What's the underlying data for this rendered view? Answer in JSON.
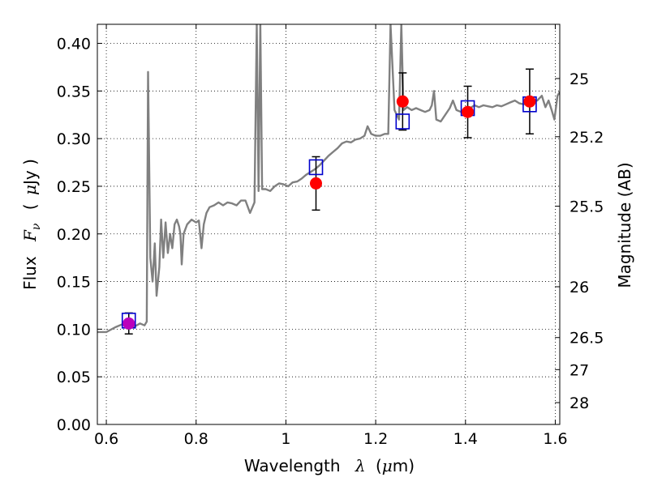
{
  "chart_data": {
    "type": "scatter",
    "title": "",
    "xlabel": {
      "prefix": "Wavelength",
      "symbol": "λ",
      "unit_open": "(",
      "unit_mu": "μ",
      "unit": "m)"
    },
    "ylabel": {
      "prefix": "Flux",
      "symbol": "F",
      "subscript": "ν",
      "unit_open": "(",
      "unit_mu": "μ",
      "unit": "Jy )"
    },
    "ylabel_right": "Magnitude (AB)",
    "xlim": [
      0.58,
      1.61
    ],
    "ylim": [
      0.0,
      0.42
    ],
    "grid": true,
    "x_ticks": [
      {
        "value": 0.6,
        "label": "0.6"
      },
      {
        "value": 0.8,
        "label": "0.8"
      },
      {
        "value": 1.0,
        "label": "1"
      },
      {
        "value": 1.2,
        "label": "1.2"
      },
      {
        "value": 1.4,
        "label": "1.4"
      },
      {
        "value": 1.6,
        "label": "1.6"
      }
    ],
    "y_ticks": [
      {
        "value": 0.0,
        "label": "0.00"
      },
      {
        "value": 0.05,
        "label": "0.05"
      },
      {
        "value": 0.1,
        "label": "0.10"
      },
      {
        "value": 0.15,
        "label": "0.15"
      },
      {
        "value": 0.2,
        "label": "0.20"
      },
      {
        "value": 0.25,
        "label": "0.25"
      },
      {
        "value": 0.3,
        "label": "0.30"
      },
      {
        "value": 0.35,
        "label": "0.35"
      },
      {
        "value": 0.4,
        "label": "0.40"
      }
    ],
    "magnitude_ticks": [
      {
        "mag": 25,
        "label": "25"
      },
      {
        "mag": 25.2,
        "label": "25.2"
      },
      {
        "mag": 25.5,
        "label": "25.5"
      },
      {
        "mag": 26,
        "label": "26"
      },
      {
        "mag": 26.5,
        "label": "26.5"
      },
      {
        "mag": 27,
        "label": "27"
      },
      {
        "mag": 28,
        "label": "28"
      }
    ],
    "model_spectrum": {
      "color": "#808080",
      "points": [
        [
          0.58,
          0.097
        ],
        [
          0.6,
          0.097
        ],
        [
          0.62,
          0.102
        ],
        [
          0.64,
          0.106
        ],
        [
          0.66,
          0.102
        ],
        [
          0.675,
          0.106
        ],
        [
          0.685,
          0.104
        ],
        [
          0.69,
          0.108
        ],
        [
          0.693,
          0.37
        ],
        [
          0.698,
          0.175
        ],
        [
          0.703,
          0.15
        ],
        [
          0.708,
          0.19
        ],
        [
          0.712,
          0.135
        ],
        [
          0.718,
          0.165
        ],
        [
          0.722,
          0.215
        ],
        [
          0.727,
          0.175
        ],
        [
          0.732,
          0.212
        ],
        [
          0.737,
          0.18
        ],
        [
          0.742,
          0.2
        ],
        [
          0.747,
          0.185
        ],
        [
          0.752,
          0.21
        ],
        [
          0.757,
          0.215
        ],
        [
          0.762,
          0.208
        ],
        [
          0.765,
          0.2
        ],
        [
          0.768,
          0.168
        ],
        [
          0.772,
          0.2
        ],
        [
          0.78,
          0.21
        ],
        [
          0.79,
          0.215
        ],
        [
          0.8,
          0.212
        ],
        [
          0.806,
          0.214
        ],
        [
          0.812,
          0.185
        ],
        [
          0.817,
          0.21
        ],
        [
          0.823,
          0.222
        ],
        [
          0.83,
          0.228
        ],
        [
          0.84,
          0.23
        ],
        [
          0.85,
          0.233
        ],
        [
          0.86,
          0.23
        ],
        [
          0.87,
          0.233
        ],
        [
          0.88,
          0.232
        ],
        [
          0.89,
          0.23
        ],
        [
          0.9,
          0.235
        ],
        [
          0.91,
          0.235
        ],
        [
          0.92,
          0.222
        ],
        [
          0.93,
          0.233
        ],
        [
          0.935,
          0.42
        ],
        [
          0.939,
          0.245
        ],
        [
          0.943,
          0.42
        ],
        [
          0.947,
          0.247
        ],
        [
          0.955,
          0.247
        ],
        [
          0.965,
          0.245
        ],
        [
          0.975,
          0.25
        ],
        [
          0.985,
          0.253
        ],
        [
          0.995,
          0.252
        ],
        [
          1.005,
          0.25
        ],
        [
          1.015,
          0.254
        ],
        [
          1.025,
          0.255
        ],
        [
          1.035,
          0.258
        ],
        [
          1.045,
          0.262
        ],
        [
          1.055,
          0.265
        ],
        [
          1.065,
          0.268
        ],
        [
          1.075,
          0.272
        ],
        [
          1.085,
          0.277
        ],
        [
          1.095,
          0.282
        ],
        [
          1.105,
          0.286
        ],
        [
          1.115,
          0.29
        ],
        [
          1.125,
          0.295
        ],
        [
          1.135,
          0.297
        ],
        [
          1.145,
          0.296
        ],
        [
          1.155,
          0.299
        ],
        [
          1.165,
          0.3
        ],
        [
          1.175,
          0.303
        ],
        [
          1.182,
          0.313
        ],
        [
          1.19,
          0.305
        ],
        [
          1.2,
          0.303
        ],
        [
          1.21,
          0.303
        ],
        [
          1.22,
          0.305
        ],
        [
          1.228,
          0.305
        ],
        [
          1.233,
          0.42
        ],
        [
          1.242,
          0.33
        ],
        [
          1.252,
          0.32
        ],
        [
          1.257,
          0.42
        ],
        [
          1.262,
          0.33
        ],
        [
          1.27,
          0.333
        ],
        [
          1.28,
          0.33
        ],
        [
          1.29,
          0.332
        ],
        [
          1.3,
          0.33
        ],
        [
          1.31,
          0.328
        ],
        [
          1.32,
          0.33
        ],
        [
          1.325,
          0.335
        ],
        [
          1.33,
          0.35
        ],
        [
          1.335,
          0.32
        ],
        [
          1.345,
          0.318
        ],
        [
          1.355,
          0.325
        ],
        [
          1.365,
          0.332
        ],
        [
          1.372,
          0.34
        ],
        [
          1.38,
          0.33
        ],
        [
          1.39,
          0.328
        ],
        [
          1.4,
          0.33
        ],
        [
          1.41,
          0.332
        ],
        [
          1.42,
          0.335
        ],
        [
          1.43,
          0.333
        ],
        [
          1.44,
          0.335
        ],
        [
          1.45,
          0.334
        ],
        [
          1.46,
          0.333
        ],
        [
          1.47,
          0.335
        ],
        [
          1.48,
          0.334
        ],
        [
          1.49,
          0.336
        ],
        [
          1.5,
          0.338
        ],
        [
          1.51,
          0.34
        ],
        [
          1.52,
          0.337
        ],
        [
          1.53,
          0.336
        ],
        [
          1.54,
          0.338
        ],
        [
          1.55,
          0.339
        ],
        [
          1.56,
          0.34
        ],
        [
          1.57,
          0.345
        ],
        [
          1.578,
          0.333
        ],
        [
          1.585,
          0.34
        ],
        [
          1.592,
          0.33
        ],
        [
          1.598,
          0.32
        ],
        [
          1.605,
          0.345
        ],
        [
          1.61,
          0.349
        ]
      ]
    },
    "model_photometry": {
      "marker": "open-square",
      "color": "#0000cc",
      "points": [
        {
          "x": 0.65,
          "y": 0.109
        },
        {
          "x": 1.067,
          "y": 0.27
        },
        {
          "x": 1.26,
          "y": 0.318
        },
        {
          "x": 1.405,
          "y": 0.332
        },
        {
          "x": 1.543,
          "y": 0.336
        }
      ]
    },
    "observed_photometry": {
      "marker": "filled-circle",
      "color": "#ff0000",
      "errorbar_color": "#000000",
      "points": [
        {
          "x": 0.65,
          "y": 0.106,
          "err": 0.011,
          "color": "#bb00bb"
        },
        {
          "x": 1.067,
          "y": 0.253,
          "err": 0.028,
          "color": "#ff0000"
        },
        {
          "x": 1.26,
          "y": 0.339,
          "err": 0.03,
          "color": "#ff0000"
        },
        {
          "x": 1.405,
          "y": 0.328,
          "err": 0.027,
          "color": "#ff0000"
        },
        {
          "x": 1.543,
          "y": 0.339,
          "err": 0.034,
          "color": "#ff0000"
        }
      ]
    }
  }
}
